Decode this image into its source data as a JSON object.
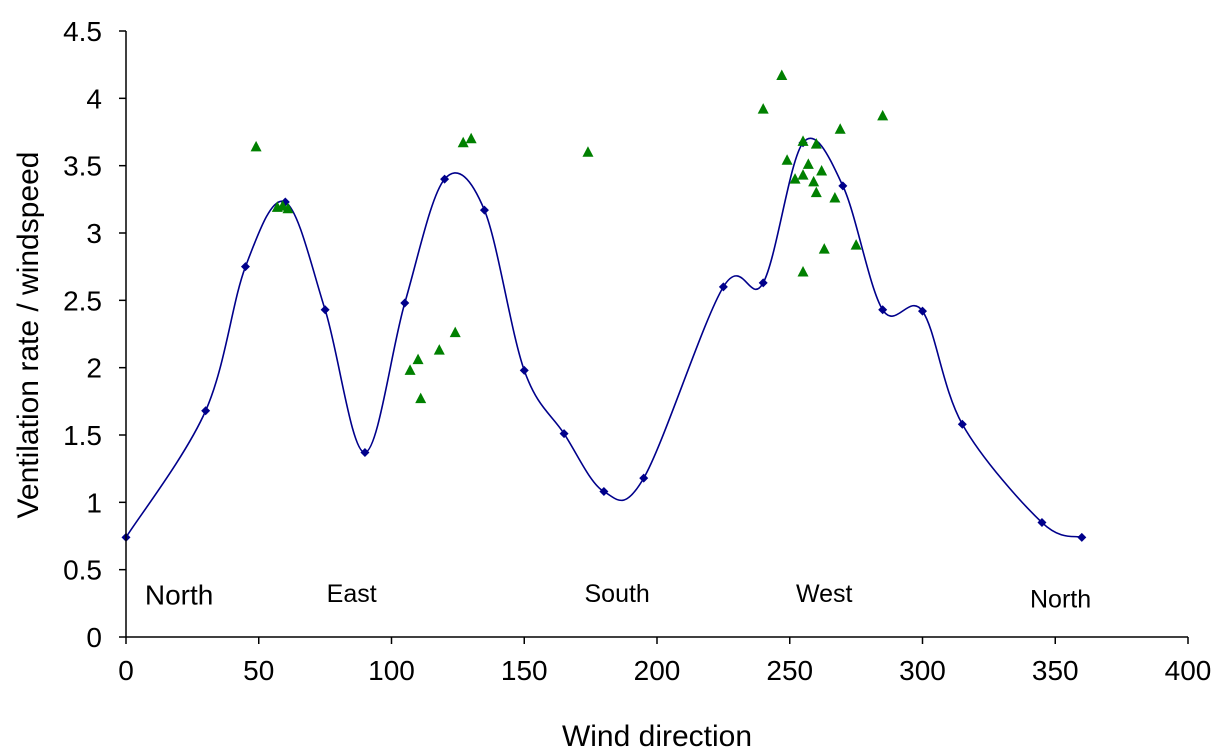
{
  "chart_data": {
    "type": "scatter",
    "title": "",
    "xlabel": "Wind direction",
    "ylabel": "Ventilation rate / windspeed",
    "xlim": [
      0,
      400
    ],
    "ylim": [
      0,
      4.5
    ],
    "xticks": [
      "0",
      "50",
      "100",
      "150",
      "200",
      "250",
      "300",
      "350",
      "400"
    ],
    "yticks": [
      "0",
      "0.5",
      "1",
      "1.5",
      "2",
      "2.5",
      "3",
      "3.5",
      "4",
      "4.5"
    ],
    "grid": false,
    "legend": "none",
    "annotations": [
      {
        "text": "North",
        "x": 20,
        "y": 0.3
      },
      {
        "text": "East",
        "x": 85,
        "y": 0.32
      },
      {
        "text": "South",
        "x": 185,
        "y": 0.32
      },
      {
        "text": "West",
        "x": 263,
        "y": 0.32
      },
      {
        "text": "North",
        "x": 352,
        "y": 0.28
      }
    ],
    "series": [
      {
        "marker": "diamond",
        "color": "#00008B",
        "line": "smooth",
        "points": [
          [
            0,
            0.74
          ],
          [
            30,
            1.68
          ],
          [
            45,
            2.75
          ],
          [
            60,
            3.23
          ],
          [
            75,
            2.43
          ],
          [
            90,
            1.37
          ],
          [
            105,
            2.48
          ],
          [
            120,
            3.4
          ],
          [
            135,
            3.17
          ],
          [
            150,
            1.98
          ],
          [
            165,
            1.51
          ],
          [
            180,
            1.08
          ],
          [
            195,
            1.18
          ],
          [
            225,
            2.6
          ],
          [
            240,
            2.63
          ],
          [
            255,
            3.67
          ],
          [
            270,
            3.35
          ],
          [
            285,
            2.43
          ],
          [
            300,
            2.42
          ],
          [
            315,
            1.58
          ],
          [
            345,
            0.85
          ],
          [
            360,
            0.74
          ]
        ]
      },
      {
        "marker": "triangle",
        "color": "#008000",
        "line": "none",
        "points": [
          [
            49,
            3.64
          ],
          [
            57,
            3.19
          ],
          [
            59,
            3.2
          ],
          [
            61,
            3.18
          ],
          [
            107,
            1.98
          ],
          [
            110,
            2.06
          ],
          [
            111,
            1.77
          ],
          [
            118,
            2.13
          ],
          [
            124,
            2.26
          ],
          [
            127,
            3.67
          ],
          [
            130,
            3.7
          ],
          [
            174,
            3.6
          ],
          [
            240,
            3.92
          ],
          [
            247,
            4.17
          ],
          [
            249,
            3.54
          ],
          [
            252,
            3.4
          ],
          [
            255,
            3.68
          ],
          [
            255,
            3.43
          ],
          [
            255,
            2.71
          ],
          [
            257,
            3.51
          ],
          [
            259,
            3.38
          ],
          [
            260,
            3.66
          ],
          [
            260,
            3.3
          ],
          [
            262,
            3.46
          ],
          [
            263,
            2.88
          ],
          [
            267,
            3.26
          ],
          [
            269,
            3.77
          ],
          [
            275,
            2.91
          ],
          [
            285,
            3.87
          ]
        ]
      }
    ]
  },
  "colors": {
    "line": "#00008B",
    "diamond": "#00008B",
    "triangle": "#008000",
    "axis": "#000000"
  }
}
